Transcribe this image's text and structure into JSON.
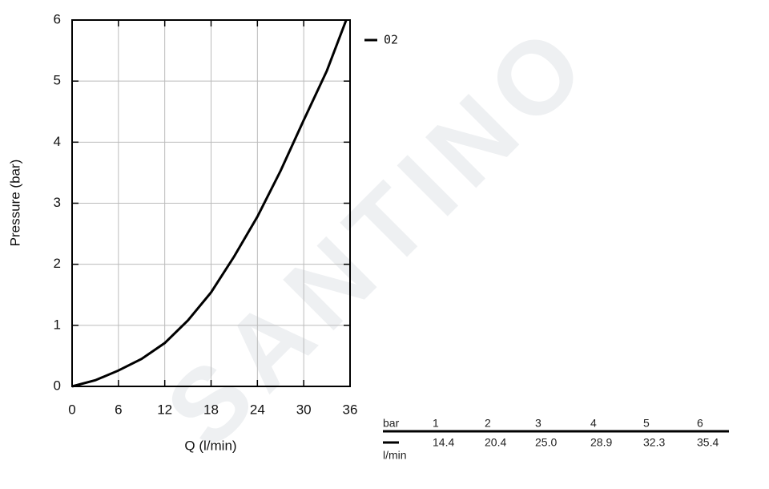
{
  "chart_data": {
    "type": "line",
    "x_label": "Q (l/min)",
    "y_label": "Pressure (bar)",
    "x": [
      0,
      3,
      6,
      9,
      12,
      15,
      18,
      21,
      24,
      27,
      30,
      33,
      35.5
    ],
    "series": [
      {
        "name": "02",
        "color": "#000000",
        "values": [
          0,
          0.1,
          0.26,
          0.45,
          0.71,
          1.08,
          1.54,
          2.13,
          2.78,
          3.53,
          4.36,
          5.17,
          6
        ]
      }
    ],
    "xlim": [
      0,
      36
    ],
    "xticks": [
      0,
      6,
      12,
      18,
      24,
      30,
      36
    ],
    "ylim": [
      0,
      6
    ],
    "yticks": [
      0,
      1,
      2,
      3,
      4,
      5,
      6
    ],
    "grid": true,
    "legend": "upper right"
  },
  "table": {
    "header": [
      "bar",
      "1",
      "2",
      "3",
      "4",
      "5",
      "6"
    ],
    "rows": [
      [
        "l/min",
        "14.4",
        "20.4",
        "25.0",
        "28.9",
        "32.3",
        "35.4"
      ]
    ]
  },
  "watermark": "SANTINO"
}
